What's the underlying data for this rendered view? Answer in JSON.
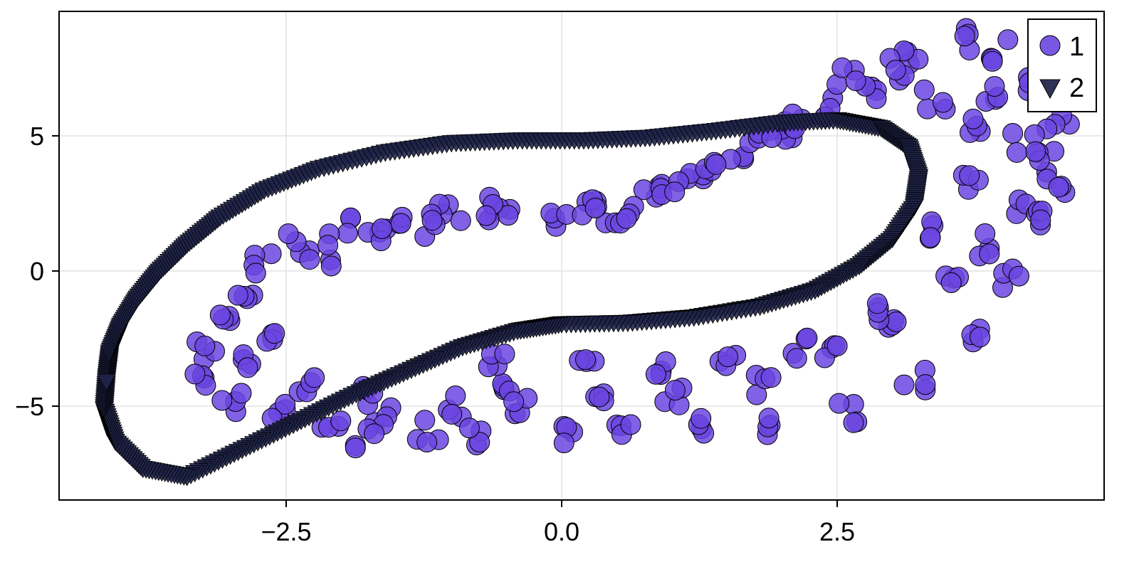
{
  "chart_data": {
    "type": "scatter",
    "title": "",
    "xlabel": "",
    "ylabel": "",
    "xlim": [
      -4.6,
      4.9
    ],
    "ylim": [
      -8.5,
      9.6
    ],
    "xticks": [
      -2.5,
      0.0,
      2.5
    ],
    "xtick_labels": [
      "−2.5",
      "0.0",
      "2.5"
    ],
    "yticks": [
      -5,
      0,
      5
    ],
    "ytick_labels": [
      "−5",
      "0",
      "5"
    ],
    "grid": true,
    "legend_position": "top-right",
    "legend": [
      {
        "label": "1",
        "marker": "circle",
        "color": "#6b45e0"
      },
      {
        "label": "2",
        "marker": "triangle-down",
        "color": "#1f2348"
      }
    ],
    "series": [
      {
        "name": "1",
        "marker": "circle",
        "color": "#6b45e0",
        "description": "Noisy band: inner loop arm through (-3,-4)->(-2.5,1.5)->(0,2)->(2,5.5) plus arc sweeping (-2,-6)->(2,-5.5)->(4.4,4)->(3.5,8.8)->(2,5.5)",
        "points": [
          [
            -3.2,
            -3.0
          ],
          [
            -3.3,
            -4.0
          ],
          [
            -3.0,
            -4.8
          ],
          [
            -2.6,
            -5.3
          ],
          [
            -2.1,
            -5.6
          ],
          [
            -1.6,
            -5.4
          ],
          [
            -1.0,
            -5.0
          ],
          [
            -0.5,
            -4.2
          ],
          [
            -3.1,
            -1.8
          ],
          [
            -2.9,
            -0.8
          ],
          [
            -2.7,
            0.3
          ],
          [
            -2.4,
            1.0
          ],
          [
            -2.0,
            1.6
          ],
          [
            -1.5,
            2.0
          ],
          [
            -1.0,
            2.1
          ],
          [
            -0.5,
            1.9
          ],
          [
            0.0,
            1.9
          ],
          [
            0.4,
            2.2
          ],
          [
            0.8,
            2.8
          ],
          [
            1.2,
            3.5
          ],
          [
            1.6,
            4.3
          ],
          [
            2.0,
            5.2
          ],
          [
            2.4,
            6.0
          ],
          [
            2.8,
            6.8
          ],
          [
            3.2,
            7.9
          ],
          [
            3.6,
            8.6
          ],
          [
            4.0,
            8.2
          ],
          [
            4.3,
            7.0
          ],
          [
            4.5,
            5.5
          ],
          [
            4.4,
            4.0
          ],
          [
            4.2,
            2.5
          ],
          [
            3.9,
            1.0
          ],
          [
            3.5,
            -0.5
          ],
          [
            3.0,
            -2.0
          ],
          [
            2.4,
            -3.2
          ],
          [
            1.8,
            -4.2
          ],
          [
            1.0,
            -4.6
          ],
          [
            0.3,
            -4.6
          ],
          [
            -0.4,
            -5.0
          ],
          [
            -1.2,
            -5.9
          ],
          [
            -1.8,
            -6.2
          ],
          [
            -0.8,
            -6.0
          ],
          [
            0.0,
            -6.0
          ],
          [
            0.6,
            -5.8
          ],
          [
            1.2,
            -5.6
          ],
          [
            1.8,
            -5.7
          ],
          [
            2.6,
            -5.3
          ],
          [
            3.2,
            -4.0
          ],
          [
            3.8,
            -2.2
          ],
          [
            4.1,
            -0.2
          ],
          [
            4.3,
            1.8
          ],
          [
            4.5,
            3.2
          ],
          [
            3.8,
            5.5
          ],
          [
            3.4,
            6.4
          ],
          [
            3.0,
            7.5
          ],
          [
            2.6,
            7.2
          ],
          [
            3.7,
            3.2
          ],
          [
            3.3,
            1.4
          ],
          [
            2.8,
            -1.5
          ],
          [
            2.2,
            -2.8
          ],
          [
            1.5,
            -3.4
          ],
          [
            0.9,
            -3.6
          ],
          [
            0.2,
            -3.4
          ],
          [
            -0.6,
            -3.2
          ],
          [
            -2.6,
            -2.2
          ],
          [
            -2.8,
            -3.4
          ],
          [
            -2.3,
            -4.2
          ],
          [
            -1.8,
            -4.6
          ],
          [
            -2.2,
            0.6
          ],
          [
            -1.7,
            1.4
          ],
          [
            -1.2,
            1.7
          ],
          [
            -0.7,
            2.3
          ],
          [
            0.2,
            2.5
          ],
          [
            0.6,
            2.0
          ],
          [
            1.0,
            3.0
          ],
          [
            1.4,
            3.9
          ],
          [
            1.8,
            4.8
          ],
          [
            2.2,
            5.5
          ],
          [
            3.9,
            6.6
          ],
          [
            4.2,
            4.8
          ]
        ]
      },
      {
        "name": "2",
        "marker": "triangle-down",
        "color": "#1f2348",
        "description": "Smooth closed loop (limit cycle)",
        "points": [
          [
            -4.13,
            -4.0
          ],
          [
            -4.1,
            -3.0
          ],
          [
            -4.0,
            -2.0
          ],
          [
            -3.85,
            -1.0
          ],
          [
            -3.65,
            0.0
          ],
          [
            -3.4,
            1.0
          ],
          [
            -3.1,
            2.0
          ],
          [
            -2.7,
            3.0
          ],
          [
            -2.2,
            3.8
          ],
          [
            -1.6,
            4.4
          ],
          [
            -1.0,
            4.75
          ],
          [
            -0.4,
            4.85
          ],
          [
            0.2,
            4.85
          ],
          [
            0.8,
            4.95
          ],
          [
            1.4,
            5.2
          ],
          [
            2.0,
            5.5
          ],
          [
            2.5,
            5.6
          ],
          [
            2.9,
            5.3
          ],
          [
            3.15,
            4.6
          ],
          [
            3.24,
            3.5
          ],
          [
            3.2,
            2.4
          ],
          [
            3.0,
            1.2
          ],
          [
            2.7,
            0.2
          ],
          [
            2.3,
            -0.7
          ],
          [
            1.8,
            -1.3
          ],
          [
            1.2,
            -1.7
          ],
          [
            0.6,
            -1.9
          ],
          [
            0.0,
            -1.95
          ],
          [
            -0.4,
            -2.2
          ],
          [
            -0.9,
            -2.8
          ],
          [
            -1.4,
            -3.7
          ],
          [
            -1.9,
            -4.6
          ],
          [
            -2.4,
            -5.6
          ],
          [
            -2.9,
            -6.6
          ],
          [
            -3.4,
            -7.6
          ],
          [
            -3.8,
            -7.3
          ],
          [
            -4.05,
            -6.3
          ],
          [
            -4.15,
            -5.1
          ]
        ]
      }
    ]
  },
  "legend": {
    "item1_label": "1",
    "item2_label": "2"
  },
  "axes": {
    "x_labels": [
      "−2.5",
      "0.0",
      "2.5"
    ],
    "y_labels": [
      "5",
      "0",
      "−5"
    ]
  },
  "colors": {
    "series1_fill": "#6b45e0",
    "series2_fill": "#1f2348",
    "grid": "#e5e5e5",
    "frame": "#000000"
  }
}
